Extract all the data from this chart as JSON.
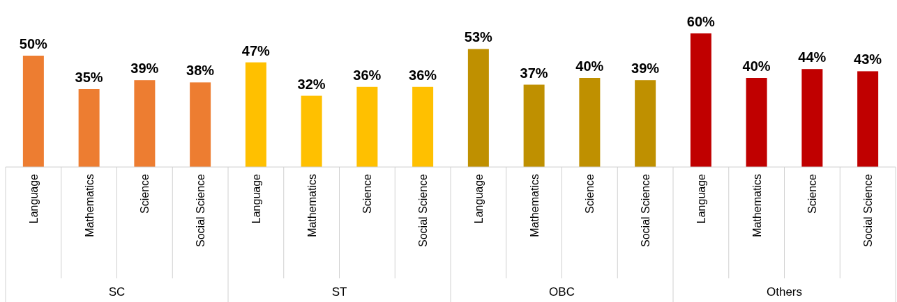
{
  "chart_data": [
    {
      "type": "bar",
      "title": "SC",
      "categories": [
        "Language",
        "Mathematics",
        "Science",
        "Social Science"
      ],
      "values": [
        50,
        35,
        39,
        38
      ],
      "value_labels": [
        "50%",
        "35%",
        "39%",
        "38%"
      ],
      "color": "#ed7d31"
    },
    {
      "type": "bar",
      "title": "ST",
      "categories": [
        "Language",
        "Mathematics",
        "Science",
        "Social Science"
      ],
      "values": [
        47,
        32,
        36,
        36
      ],
      "value_labels": [
        "47%",
        "32%",
        "36%",
        "36%"
      ],
      "color": "#ffc000"
    },
    {
      "type": "bar",
      "title": "OBC",
      "categories": [
        "Language",
        "Mathematics",
        "Science",
        "Social Science"
      ],
      "values": [
        53,
        37,
        40,
        39
      ],
      "value_labels": [
        "53%",
        "37%",
        "40%",
        "39%"
      ],
      "color": "#bf9000"
    },
    {
      "type": "bar",
      "title": "Others",
      "categories": [
        "Language",
        "Mathematics",
        "Science",
        "Social Science"
      ],
      "values": [
        60,
        40,
        44,
        43
      ],
      "value_labels": [
        "60%",
        "40%",
        "44%",
        "43%"
      ],
      "color": "#c00000"
    }
  ]
}
